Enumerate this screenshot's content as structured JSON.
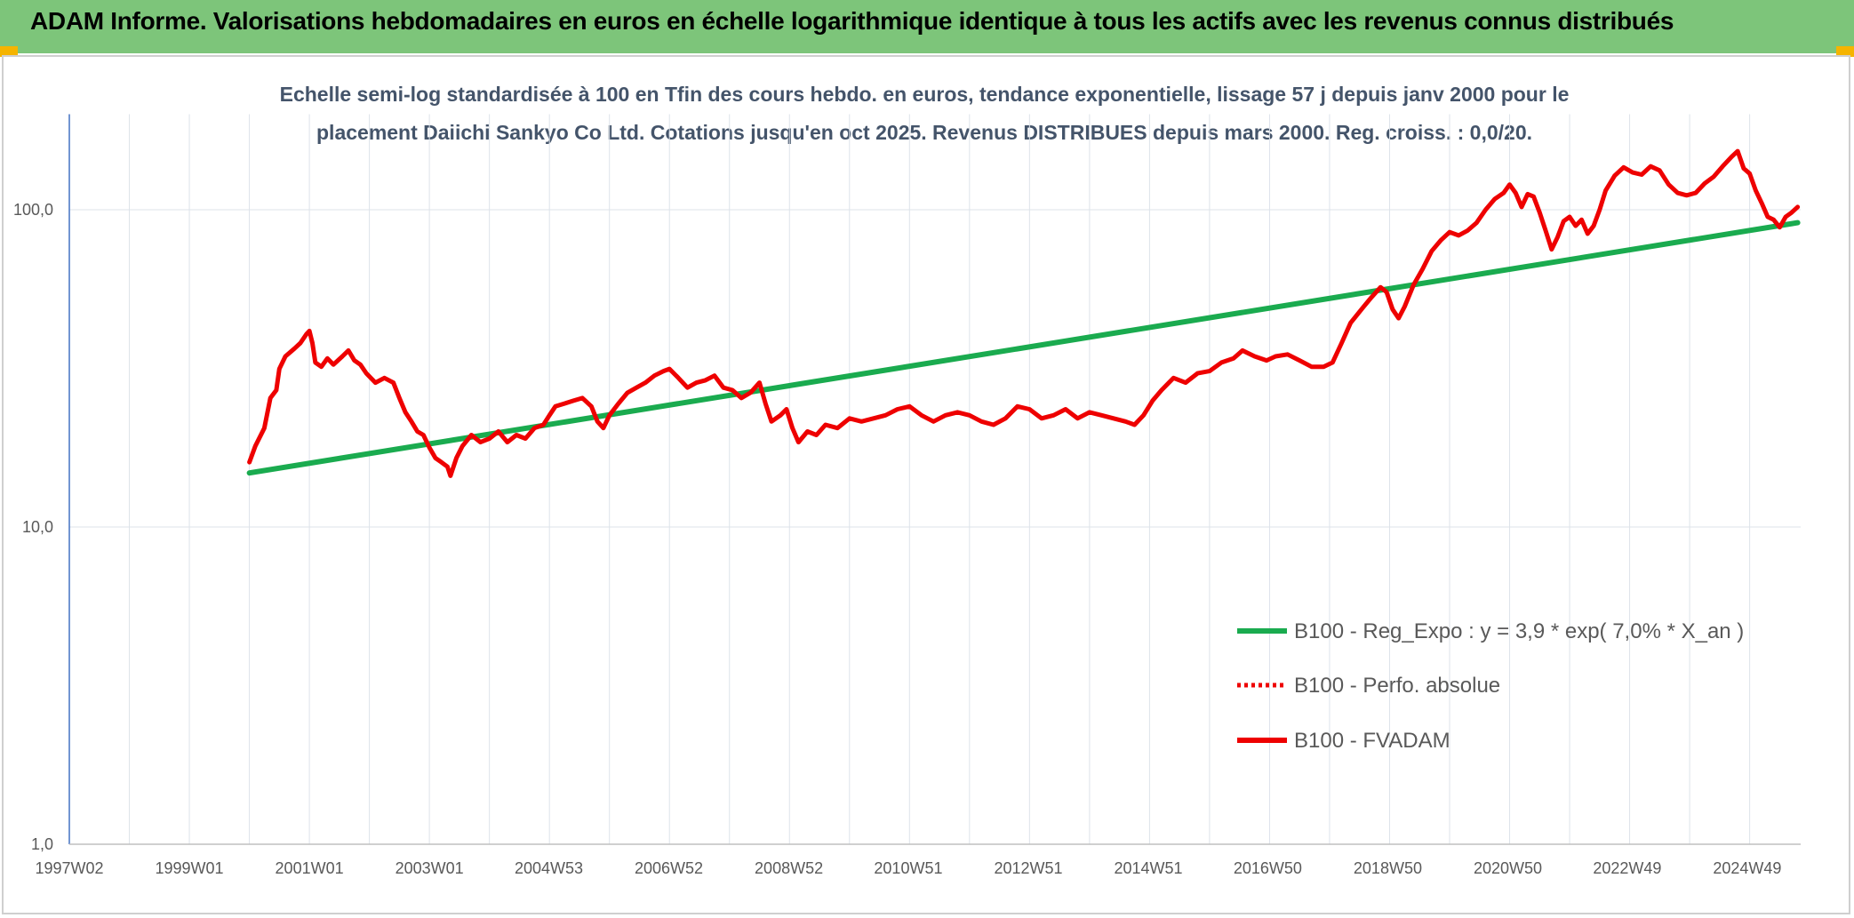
{
  "header": {
    "title": "ADAM Informe. Valorisations hebdomadaires en euros en échelle logarithmique identique à tous les actifs avec les revenus connus distribués"
  },
  "colors": {
    "banner": "#7dc57a",
    "regression": "#1aab4f",
    "fvadam": "#ee0000",
    "perfo": "#ee0000",
    "grid": "#dde3ea"
  },
  "chart_data": {
    "type": "line",
    "title_lines": [
      "Echelle semi-log standardisée à 100 en Tfin des cours hebdo. en euros, tendance exponentielle, lissage 57 j depuis janv 2000 pour le",
      "placement Daiichi Sankyo Co Ltd. Cotations jusqu'en oct 2025. Revenus DISTRIBUES depuis mars 2000. Reg. croiss. : 0,0/20."
    ],
    "y_scale": "log",
    "ylim": [
      1,
      200
    ],
    "xlim": [
      1997.0,
      2025.85
    ],
    "y_ticks": [
      {
        "value": 1,
        "label": "1,0"
      },
      {
        "value": 10,
        "label": "10,0"
      },
      {
        "value": 100,
        "label": "100,0"
      }
    ],
    "x_ticks": [
      {
        "year": 1997.0,
        "label": "1997W02"
      },
      {
        "year": 1999.0,
        "label": "1999W01"
      },
      {
        "year": 2001.0,
        "label": "2001W01"
      },
      {
        "year": 2003.0,
        "label": "2003W01"
      },
      {
        "year": 2004.99,
        "label": "2004W53"
      },
      {
        "year": 2006.99,
        "label": "2006W52"
      },
      {
        "year": 2008.99,
        "label": "2008W52"
      },
      {
        "year": 2010.98,
        "label": "2010W51"
      },
      {
        "year": 2012.98,
        "label": "2012W51"
      },
      {
        "year": 2014.98,
        "label": "2014W51"
      },
      {
        "year": 2016.97,
        "label": "2016W50"
      },
      {
        "year": 2018.97,
        "label": "2018W50"
      },
      {
        "year": 2020.97,
        "label": "2020W50"
      },
      {
        "year": 2022.96,
        "label": "2022W49"
      },
      {
        "year": 2024.96,
        "label": "2024W49"
      }
    ],
    "legend_position": "bottom-right",
    "series": [
      {
        "name": "B100 - Reg_Expo : y = 3,9 * exp( 7,0% *  X_an )",
        "style": "solid-green",
        "points": [
          [
            2000.0,
            14.8
          ],
          [
            2025.8,
            91.0
          ]
        ]
      },
      {
        "name": "B100 - Perfo. absolue",
        "style": "dotted-red",
        "points": []
      },
      {
        "name": "B100 - FVADAM",
        "style": "solid-red",
        "points": [
          [
            2000.0,
            16.0
          ],
          [
            2000.1,
            18.0
          ],
          [
            2000.25,
            20.5
          ],
          [
            2000.35,
            25.5
          ],
          [
            2000.45,
            27.0
          ],
          [
            2000.5,
            31.5
          ],
          [
            2000.6,
            34.5
          ],
          [
            2000.75,
            36.5
          ],
          [
            2000.85,
            38.0
          ],
          [
            2000.95,
            40.5
          ],
          [
            2001.0,
            41.5
          ],
          [
            2001.05,
            38.0
          ],
          [
            2001.1,
            33.0
          ],
          [
            2001.2,
            32.0
          ],
          [
            2001.3,
            34.0
          ],
          [
            2001.4,
            32.5
          ],
          [
            2001.55,
            34.5
          ],
          [
            2001.65,
            36.0
          ],
          [
            2001.75,
            33.5
          ],
          [
            2001.85,
            32.5
          ],
          [
            2001.95,
            30.5
          ],
          [
            2002.1,
            28.5
          ],
          [
            2002.25,
            29.5
          ],
          [
            2002.4,
            28.5
          ],
          [
            2002.5,
            25.5
          ],
          [
            2002.6,
            23.0
          ],
          [
            2002.7,
            21.5
          ],
          [
            2002.8,
            20.0
          ],
          [
            2002.9,
            19.5
          ],
          [
            2003.0,
            17.8
          ],
          [
            2003.1,
            16.5
          ],
          [
            2003.2,
            16.0
          ],
          [
            2003.3,
            15.5
          ],
          [
            2003.35,
            14.5
          ],
          [
            2003.45,
            16.5
          ],
          [
            2003.55,
            18.0
          ],
          [
            2003.7,
            19.5
          ],
          [
            2003.85,
            18.5
          ],
          [
            2004.0,
            19.0
          ],
          [
            2004.15,
            20.0
          ],
          [
            2004.3,
            18.5
          ],
          [
            2004.45,
            19.5
          ],
          [
            2004.6,
            19.0
          ],
          [
            2004.75,
            20.5
          ],
          [
            2004.9,
            21.0
          ],
          [
            2005.0,
            22.5
          ],
          [
            2005.1,
            24.0
          ],
          [
            2005.25,
            24.5
          ],
          [
            2005.4,
            25.0
          ],
          [
            2005.55,
            25.5
          ],
          [
            2005.7,
            24.0
          ],
          [
            2005.8,
            21.5
          ],
          [
            2005.9,
            20.5
          ],
          [
            2006.0,
            22.5
          ],
          [
            2006.15,
            24.5
          ],
          [
            2006.3,
            26.5
          ],
          [
            2006.45,
            27.5
          ],
          [
            2006.6,
            28.5
          ],
          [
            2006.75,
            30.0
          ],
          [
            2006.9,
            31.0
          ],
          [
            2007.0,
            31.5
          ],
          [
            2007.15,
            29.5
          ],
          [
            2007.3,
            27.5
          ],
          [
            2007.45,
            28.5
          ],
          [
            2007.6,
            29.0
          ],
          [
            2007.75,
            30.0
          ],
          [
            2007.9,
            27.5
          ],
          [
            2008.05,
            27.0
          ],
          [
            2008.2,
            25.5
          ],
          [
            2008.35,
            26.5
          ],
          [
            2008.5,
            28.5
          ],
          [
            2008.6,
            24.5
          ],
          [
            2008.7,
            21.5
          ],
          [
            2008.85,
            22.5
          ],
          [
            2008.95,
            23.5
          ],
          [
            2009.05,
            20.5
          ],
          [
            2009.15,
            18.5
          ],
          [
            2009.3,
            20.0
          ],
          [
            2009.45,
            19.5
          ],
          [
            2009.6,
            21.0
          ],
          [
            2009.8,
            20.5
          ],
          [
            2010.0,
            22.0
          ],
          [
            2010.2,
            21.5
          ],
          [
            2010.4,
            22.0
          ],
          [
            2010.6,
            22.5
          ],
          [
            2010.8,
            23.5
          ],
          [
            2011.0,
            24.0
          ],
          [
            2011.2,
            22.5
          ],
          [
            2011.4,
            21.5
          ],
          [
            2011.6,
            22.5
          ],
          [
            2011.8,
            23.0
          ],
          [
            2012.0,
            22.5
          ],
          [
            2012.2,
            21.5
          ],
          [
            2012.4,
            21.0
          ],
          [
            2012.6,
            22.0
          ],
          [
            2012.8,
            24.0
          ],
          [
            2013.0,
            23.5
          ],
          [
            2013.2,
            22.0
          ],
          [
            2013.4,
            22.5
          ],
          [
            2013.6,
            23.5
          ],
          [
            2013.8,
            22.0
          ],
          [
            2014.0,
            23.0
          ],
          [
            2014.2,
            22.5
          ],
          [
            2014.4,
            22.0
          ],
          [
            2014.6,
            21.5
          ],
          [
            2014.75,
            21.0
          ],
          [
            2014.9,
            22.5
          ],
          [
            2015.05,
            25.0
          ],
          [
            2015.2,
            27.0
          ],
          [
            2015.4,
            29.5
          ],
          [
            2015.6,
            28.5
          ],
          [
            2015.8,
            30.5
          ],
          [
            2016.0,
            31.0
          ],
          [
            2016.2,
            33.0
          ],
          [
            2016.4,
            34.0
          ],
          [
            2016.55,
            36.0
          ],
          [
            2016.75,
            34.5
          ],
          [
            2016.95,
            33.5
          ],
          [
            2017.1,
            34.5
          ],
          [
            2017.3,
            35.0
          ],
          [
            2017.5,
            33.5
          ],
          [
            2017.7,
            32.0
          ],
          [
            2017.9,
            32.0
          ],
          [
            2018.05,
            33.0
          ],
          [
            2018.2,
            38.0
          ],
          [
            2018.35,
            44.0
          ],
          [
            2018.55,
            49.0
          ],
          [
            2018.7,
            53.0
          ],
          [
            2018.85,
            57.0
          ],
          [
            2018.95,
            55.0
          ],
          [
            2019.05,
            48.5
          ],
          [
            2019.15,
            45.5
          ],
          [
            2019.25,
            49.5
          ],
          [
            2019.4,
            58.0
          ],
          [
            2019.55,
            65.0
          ],
          [
            2019.7,
            74.0
          ],
          [
            2019.85,
            80.0
          ],
          [
            2020.0,
            85.0
          ],
          [
            2020.15,
            83.0
          ],
          [
            2020.3,
            86.0
          ],
          [
            2020.45,
            91.0
          ],
          [
            2020.6,
            100.0
          ],
          [
            2020.75,
            108.0
          ],
          [
            2020.9,
            113.0
          ],
          [
            2021.0,
            120.0
          ],
          [
            2021.1,
            113.0
          ],
          [
            2021.2,
            102.0
          ],
          [
            2021.3,
            112.0
          ],
          [
            2021.4,
            110.0
          ],
          [
            2021.5,
            98.0
          ],
          [
            2021.6,
            86.0
          ],
          [
            2021.7,
            75.0
          ],
          [
            2021.8,
            82.0
          ],
          [
            2021.9,
            92.0
          ],
          [
            2022.0,
            95.0
          ],
          [
            2022.1,
            89.0
          ],
          [
            2022.2,
            93.0
          ],
          [
            2022.3,
            84.0
          ],
          [
            2022.4,
            89.0
          ],
          [
            2022.5,
            100.0
          ],
          [
            2022.6,
            115.0
          ],
          [
            2022.75,
            128.0
          ],
          [
            2022.9,
            136.0
          ],
          [
            2023.05,
            131.0
          ],
          [
            2023.2,
            129.0
          ],
          [
            2023.35,
            137.0
          ],
          [
            2023.5,
            133.0
          ],
          [
            2023.65,
            120.0
          ],
          [
            2023.8,
            113.0
          ],
          [
            2023.95,
            111.0
          ],
          [
            2024.1,
            113.0
          ],
          [
            2024.25,
            121.0
          ],
          [
            2024.4,
            127.0
          ],
          [
            2024.55,
            137.0
          ],
          [
            2024.7,
            147.0
          ],
          [
            2024.8,
            153.0
          ],
          [
            2024.9,
            135.0
          ],
          [
            2025.0,
            130.0
          ],
          [
            2025.1,
            115.0
          ],
          [
            2025.2,
            105.0
          ],
          [
            2025.3,
            95.0
          ],
          [
            2025.4,
            93.0
          ],
          [
            2025.5,
            88.0
          ],
          [
            2025.6,
            95.0
          ],
          [
            2025.7,
            98.0
          ],
          [
            2025.8,
            102.0
          ]
        ]
      }
    ]
  }
}
